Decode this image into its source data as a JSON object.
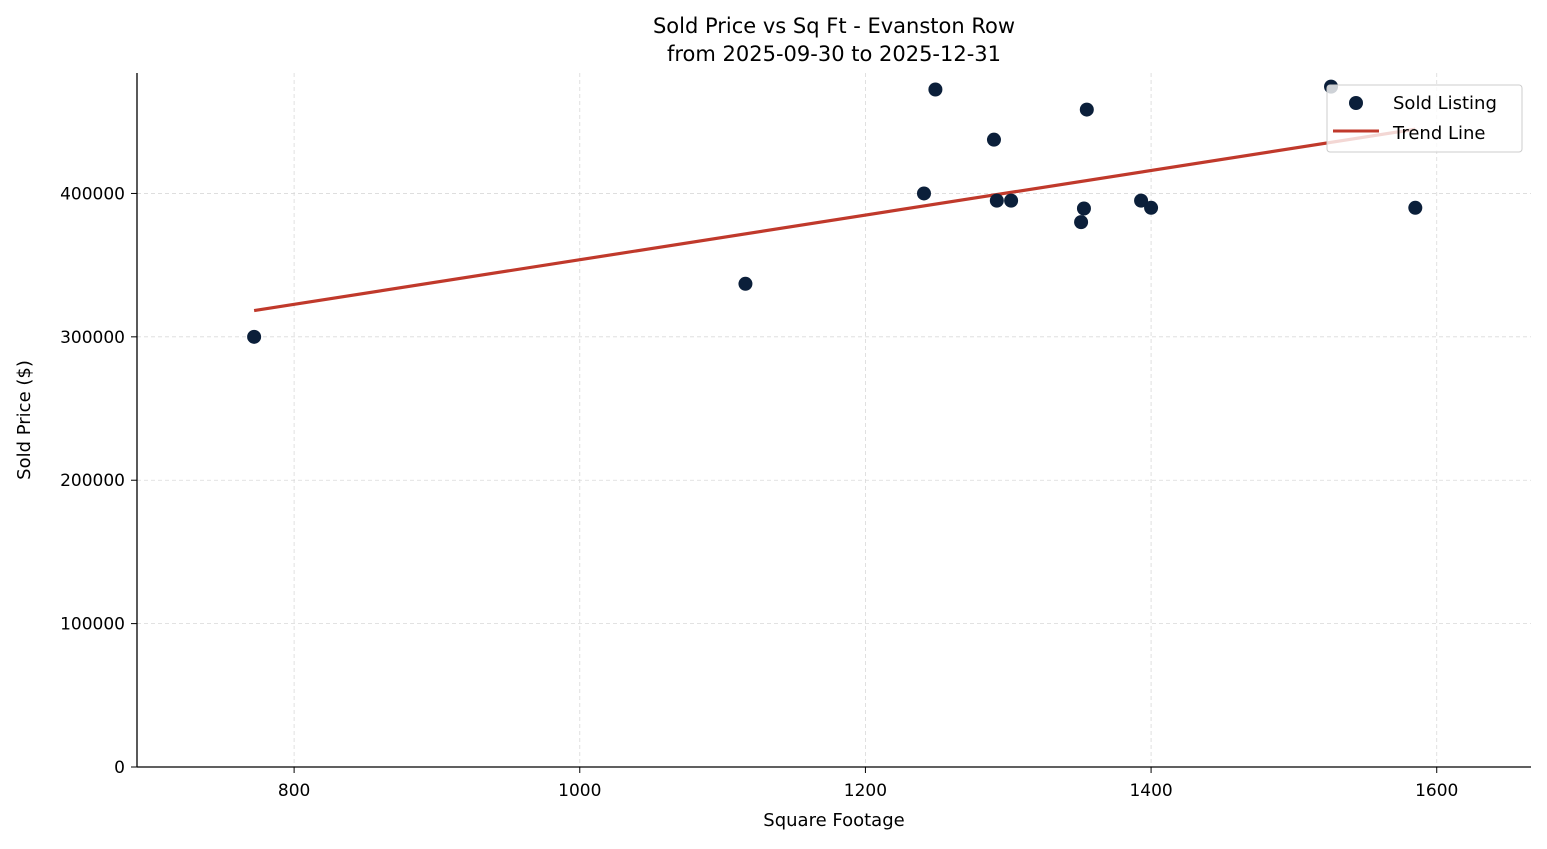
{
  "chart_data": {
    "type": "scatter",
    "title": "Sold Price vs Sq Ft - Evanston Row",
    "subtitle": "from 2025-09-30 to 2025-12-31",
    "xlabel": "Square Footage",
    "ylabel": "Sold Price ($)",
    "xlim": [
      690,
      1666
    ],
    "ylim": [
      0,
      484000
    ],
    "xticks": [
      800,
      1000,
      1200,
      1400,
      1600
    ],
    "yticks": [
      0,
      100000,
      200000,
      300000,
      400000
    ],
    "grid": true,
    "legend_placement": "top-right",
    "series": [
      {
        "name": "Sold Listing",
        "type": "scatter",
        "color": "#0b1f3a",
        "points": [
          [
            772,
            300000
          ],
          [
            1116,
            337000
          ],
          [
            1241,
            400000
          ],
          [
            1249,
            472500
          ],
          [
            1290,
            437500
          ],
          [
            1292,
            395000
          ],
          [
            1302,
            395000
          ],
          [
            1351,
            380000
          ],
          [
            1353,
            389500
          ],
          [
            1355,
            458500
          ],
          [
            1393,
            395000
          ],
          [
            1400,
            390000
          ],
          [
            1526,
            474500
          ],
          [
            1585,
            390000
          ]
        ]
      },
      {
        "name": "Trend Line",
        "type": "line",
        "color": "#c0392b",
        "points": [
          [
            772,
            318300
          ],
          [
            1585,
            444800
          ]
        ]
      }
    ]
  }
}
